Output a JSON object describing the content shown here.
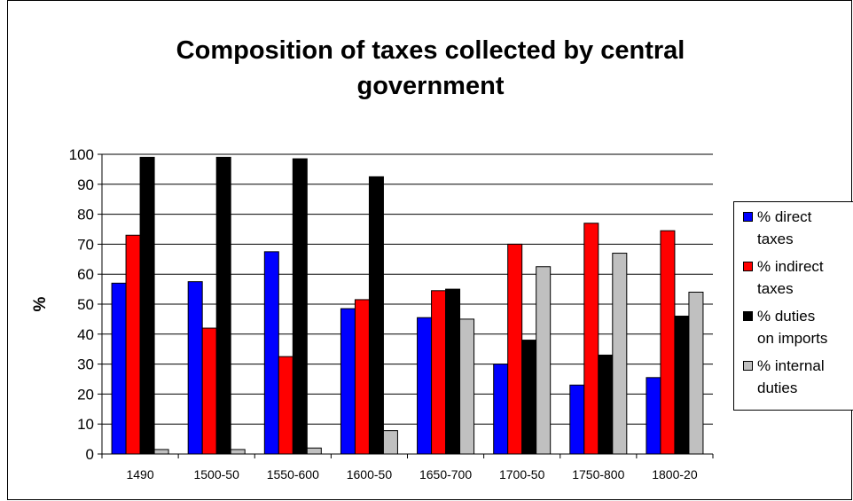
{
  "chart_data": {
    "type": "bar",
    "title": "Composition of taxes collected by central government",
    "title_lines": [
      "Composition of taxes collected by central",
      "government"
    ],
    "xlabel": "",
    "ylabel": "%",
    "ylim": [
      0,
      100
    ],
    "yticks": [
      0,
      10,
      20,
      30,
      40,
      50,
      60,
      70,
      80,
      90,
      100
    ],
    "grid": true,
    "legend_position": "right",
    "categories": [
      "1490",
      "1500-50",
      "1550-600",
      "1600-50",
      "1650-700",
      "1700-50",
      "1750-800",
      "1800-20"
    ],
    "series": [
      {
        "name": "% direct taxes",
        "legend_lines": [
          "% direct",
          "taxes"
        ],
        "color": "#0000ff",
        "values": [
          57,
          57.5,
          67.5,
          48.5,
          45.5,
          30,
          23,
          25.5
        ]
      },
      {
        "name": "% indirect taxes",
        "legend_lines": [
          "% indirect",
          "taxes"
        ],
        "color": "#ff0000",
        "values": [
          73,
          42,
          32.5,
          51.5,
          54.5,
          70,
          77,
          74.5
        ]
      },
      {
        "name": "% duties on imports",
        "legend_lines": [
          "% duties",
          "on imports"
        ],
        "color": "#000000",
        "values": [
          99,
          99,
          98.5,
          92.5,
          55,
          38,
          33,
          46
        ]
      },
      {
        "name": "% internal duties",
        "legend_lines": [
          "% internal",
          "duties"
        ],
        "color": "#c0c0c0",
        "values": [
          1.5,
          1.5,
          2,
          7.8,
          45,
          62.5,
          67,
          54
        ]
      }
    ]
  }
}
